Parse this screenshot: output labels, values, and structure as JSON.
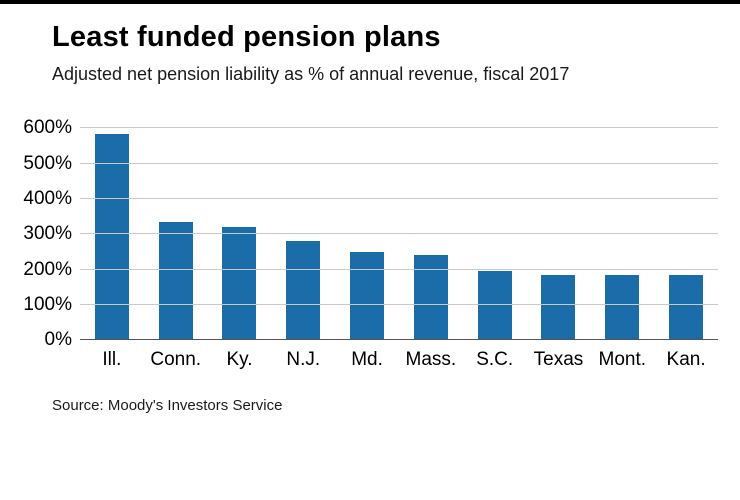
{
  "page": {
    "title": "Least funded pension plans",
    "subtitle": "Adjusted net pension liability as % of annual revenue, fiscal 2017",
    "source": "Source: Moody's Investors Service"
  },
  "colors": {
    "bar": "#1a6da8",
    "grid": "#c9c9c9",
    "baseline": "#555555"
  },
  "chart_data": {
    "type": "bar",
    "title": "Least funded pension plans",
    "subtitle": "Adjusted net pension liability as % of annual revenue, fiscal 2017",
    "source": "Source: Moody's Investors Service",
    "categories": [
      "Ill.",
      "Conn.",
      "Ky.",
      "N.J.",
      "Md.",
      "Mass.",
      "S.C.",
      "Texas",
      "Mont.",
      "Kan."
    ],
    "values": [
      585,
      335,
      320,
      280,
      250,
      240,
      195,
      185,
      185,
      185
    ],
    "xlabel": "",
    "ylabel": "",
    "ylim": [
      0,
      600
    ],
    "ytick_step": 100,
    "ytick_suffix": "%",
    "grid": true,
    "legend": "none",
    "bar_color": "#1a6da8"
  }
}
